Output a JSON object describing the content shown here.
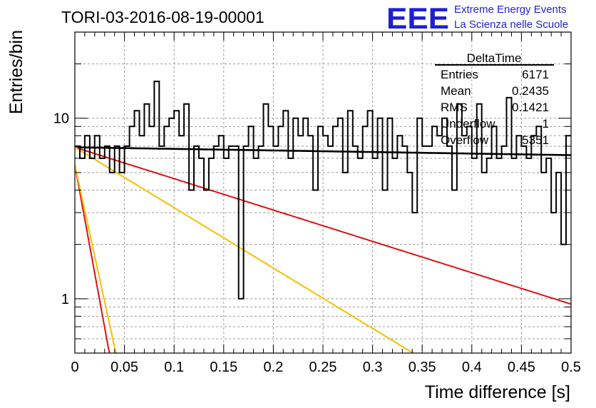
{
  "header": {
    "title": "TORI-03-2016-08-19-00001",
    "logo_mark": "EEE",
    "logo_line1": "Extreme Energy Events",
    "logo_line2": "La Scienza nelle Scuole"
  },
  "stats": {
    "title": "DeltaTime",
    "rows": [
      {
        "label": "Entries",
        "value": "6171"
      },
      {
        "label": "Mean",
        "value": "0.2435"
      },
      {
        "label": "RMS",
        "value": "0.1421"
      },
      {
        "label": "Underflow",
        "value": "1"
      },
      {
        "label": "Overflow",
        "value": "5351"
      }
    ]
  },
  "colors": {
    "histogram": "#000000",
    "fit_flat": "#000000",
    "fit_red": "#e01010",
    "fit_orange": "#f5c000",
    "grid": "#9a9a9a"
  },
  "chart_data": {
    "type": "histogram",
    "xlabel": "Time difference [s]",
    "ylabel": "Entries/bin",
    "xlim": [
      0,
      0.5
    ],
    "ylim": [
      0.5,
      30
    ],
    "yscale": "log",
    "grid": true,
    "x_ticks": [
      "0",
      "0.05",
      "0.1",
      "0.15",
      "0.2",
      "0.25",
      "0.3",
      "0.35",
      "0.4",
      "0.45",
      "0.5"
    ],
    "y_ticks": [
      "1",
      "10"
    ],
    "bin_width": 0.005,
    "bin_values": [
      7,
      6,
      8,
      6,
      8,
      6,
      7,
      5,
      7,
      5,
      7,
      9,
      11,
      8,
      12,
      9,
      16,
      7,
      9,
      10,
      11,
      8,
      12,
      4,
      7,
      6,
      4,
      6,
      7,
      8,
      6,
      7,
      7,
      1,
      7,
      9,
      6,
      7,
      12,
      9,
      7,
      9,
      11,
      6,
      10,
      8,
      10,
      8,
      4,
      9,
      8,
      7,
      9,
      10,
      5,
      11,
      7,
      6,
      9,
      11,
      6,
      10,
      4,
      10,
      6,
      8,
      7,
      5,
      3,
      10,
      7,
      7,
      9,
      8,
      10,
      7,
      4,
      12,
      8,
      9,
      6,
      12,
      5,
      6,
      9,
      6,
      7,
      13,
      6,
      8,
      7,
      6,
      8,
      9,
      5,
      6,
      3,
      5,
      2,
      8
    ],
    "fits": [
      {
        "color": "black",
        "p0": 6.9,
        "p1": -0.2
      },
      {
        "color": "red",
        "p0": 6.9,
        "p1": -4.0
      },
      {
        "color": "orange",
        "p0": 6.9,
        "p1": -7.7
      },
      {
        "color": "red",
        "p0": 5.5,
        "p1": -69
      },
      {
        "color": "orange",
        "p0": 5.5,
        "p1": -58
      }
    ]
  }
}
